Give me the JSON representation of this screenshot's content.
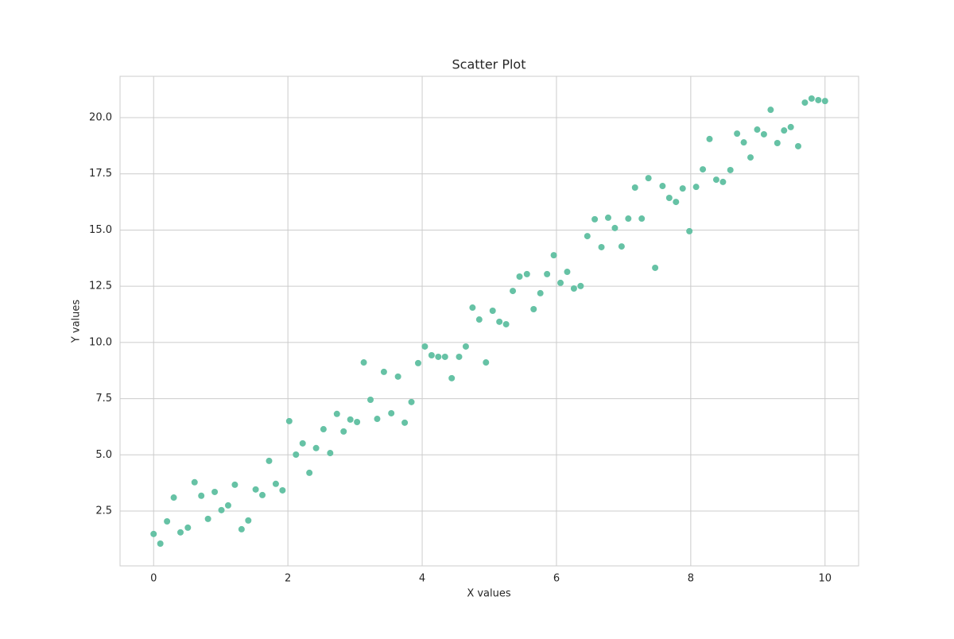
{
  "chart_data": {
    "type": "scatter",
    "title": "Scatter Plot",
    "x_label": "X values",
    "y_label": "Y values",
    "color": "#66c2a5",
    "grid": true,
    "xlim": [
      -0.5,
      10.5
    ],
    "ylim": [
      0.06,
      21.84
    ],
    "xticks": [
      0,
      2,
      4,
      6,
      8,
      10
    ],
    "yticks": [
      2.5,
      {
        "value": 5,
        "label": "5.0"
      },
      7.5,
      {
        "value": 10,
        "label": "10.0"
      },
      12.5,
      {
        "value": 15,
        "label": "15.0"
      },
      17.5,
      {
        "value": 20,
        "label": "20.0"
      }
    ],
    "x": [
      0,
      0.1,
      0.2,
      0.3,
      0.4,
      0.51,
      0.61,
      0.71,
      0.81,
      0.91,
      1.01,
      1.11,
      1.21,
      1.31,
      1.41,
      1.52,
      1.62,
      1.72,
      1.82,
      1.92,
      2.02,
      2.12,
      2.22,
      2.32,
      2.42,
      2.53,
      2.63,
      2.73,
      2.83,
      2.93,
      3.03,
      3.13,
      3.23,
      3.33,
      3.43,
      3.54,
      3.64,
      3.74,
      3.84,
      3.94,
      4.04,
      4.14,
      4.24,
      4.34,
      4.44,
      4.55,
      4.65,
      4.75,
      4.85,
      4.95,
      5.05,
      5.15,
      5.25,
      5.35,
      5.45,
      5.56,
      5.66,
      5.76,
      5.86,
      5.96,
      6.06,
      6.16,
      6.26,
      6.36,
      6.46,
      6.57,
      6.67,
      6.77,
      6.87,
      6.97,
      7.07,
      7.17,
      7.27,
      7.37,
      7.47,
      7.58,
      7.68,
      7.78,
      7.88,
      7.98,
      8.08,
      8.18,
      8.28,
      8.38,
      8.48,
      8.59,
      8.69,
      8.79,
      8.89,
      8.99,
      9.09,
      9.19,
      9.29,
      9.39,
      9.49,
      9.6,
      9.7,
      9.8,
      9.9,
      10
    ],
    "values": [
      1.48,
      1.05,
      2.04,
      3.1,
      1.55,
      1.76,
      3.78,
      3.18,
      2.15,
      3.35,
      2.54,
      2.75,
      3.67,
      1.69,
      2.08,
      3.46,
      3.21,
      4.73,
      3.71,
      3.42,
      6.5,
      5.01,
      5.51,
      4.2,
      5.3,
      6.14,
      5.08,
      6.82,
      6.04,
      6.57,
      6.46,
      9.11,
      7.45,
      6.6,
      8.69,
      6.85,
      8.48,
      6.43,
      7.35,
      9.08,
      9.82,
      9.43,
      9.36,
      9.36,
      8.41,
      9.36,
      9.82,
      11.55,
      11.02,
      9.11,
      11.41,
      10.92,
      10.81,
      12.29,
      12.93,
      13.04,
      11.48,
      12.19,
      13.04,
      13.88,
      12.65,
      13.14,
      12.4,
      12.51,
      14.73,
      15.48,
      14.24,
      15.55,
      15.09,
      14.27,
      15.51,
      16.89,
      15.51,
      17.31,
      13.32,
      16.96,
      16.43,
      16.25,
      16.85,
      14.95,
      16.92,
      17.7,
      19.05,
      17.24,
      17.14,
      17.67,
      19.29,
      18.9,
      18.23,
      19.47,
      19.26,
      20.35,
      18.87,
      19.43,
      19.58,
      18.73,
      20.67,
      20.85,
      20.78,
      20.74
    ]
  }
}
